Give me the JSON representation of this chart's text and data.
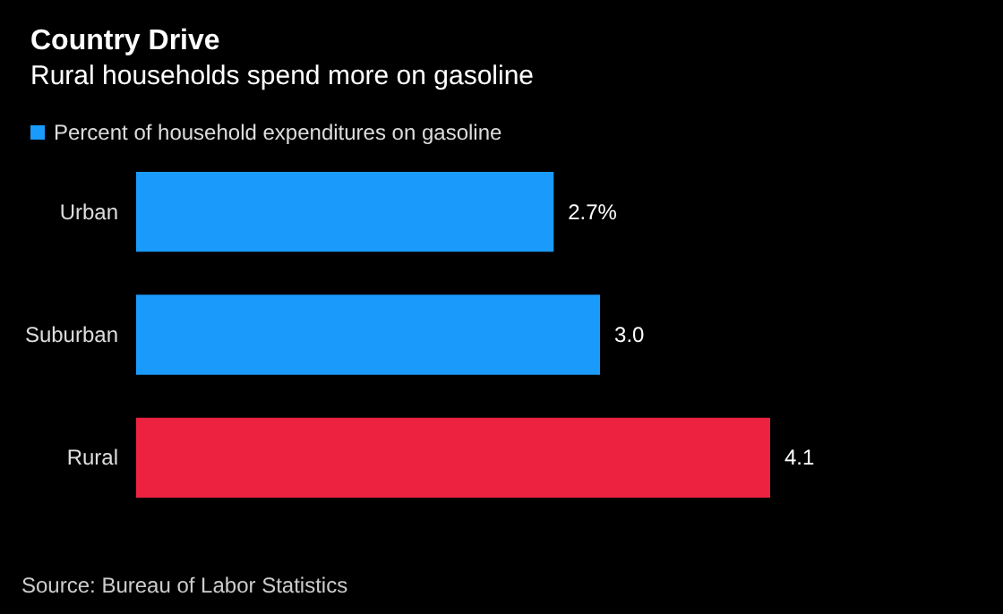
{
  "chart_data": {
    "type": "bar",
    "orientation": "horizontal",
    "title": "Country Drive",
    "subtitle": "Rural households spend more on gasoline",
    "categories": [
      "Urban",
      "Suburban",
      "Rural"
    ],
    "series": [
      {
        "name": "Percent of household expenditures on gasoline",
        "color": "#1a9bfc",
        "colors": [
          "#1a9bfc",
          "#1a9bfc",
          "#ec2240"
        ],
        "values": [
          2.7,
          3.0,
          4.1
        ],
        "value_labels": [
          "2.7%",
          "3.0",
          "4.1"
        ]
      }
    ],
    "legend": "top left",
    "annotations": [
      "Source: Bureau of Labor Statistics"
    ]
  }
}
